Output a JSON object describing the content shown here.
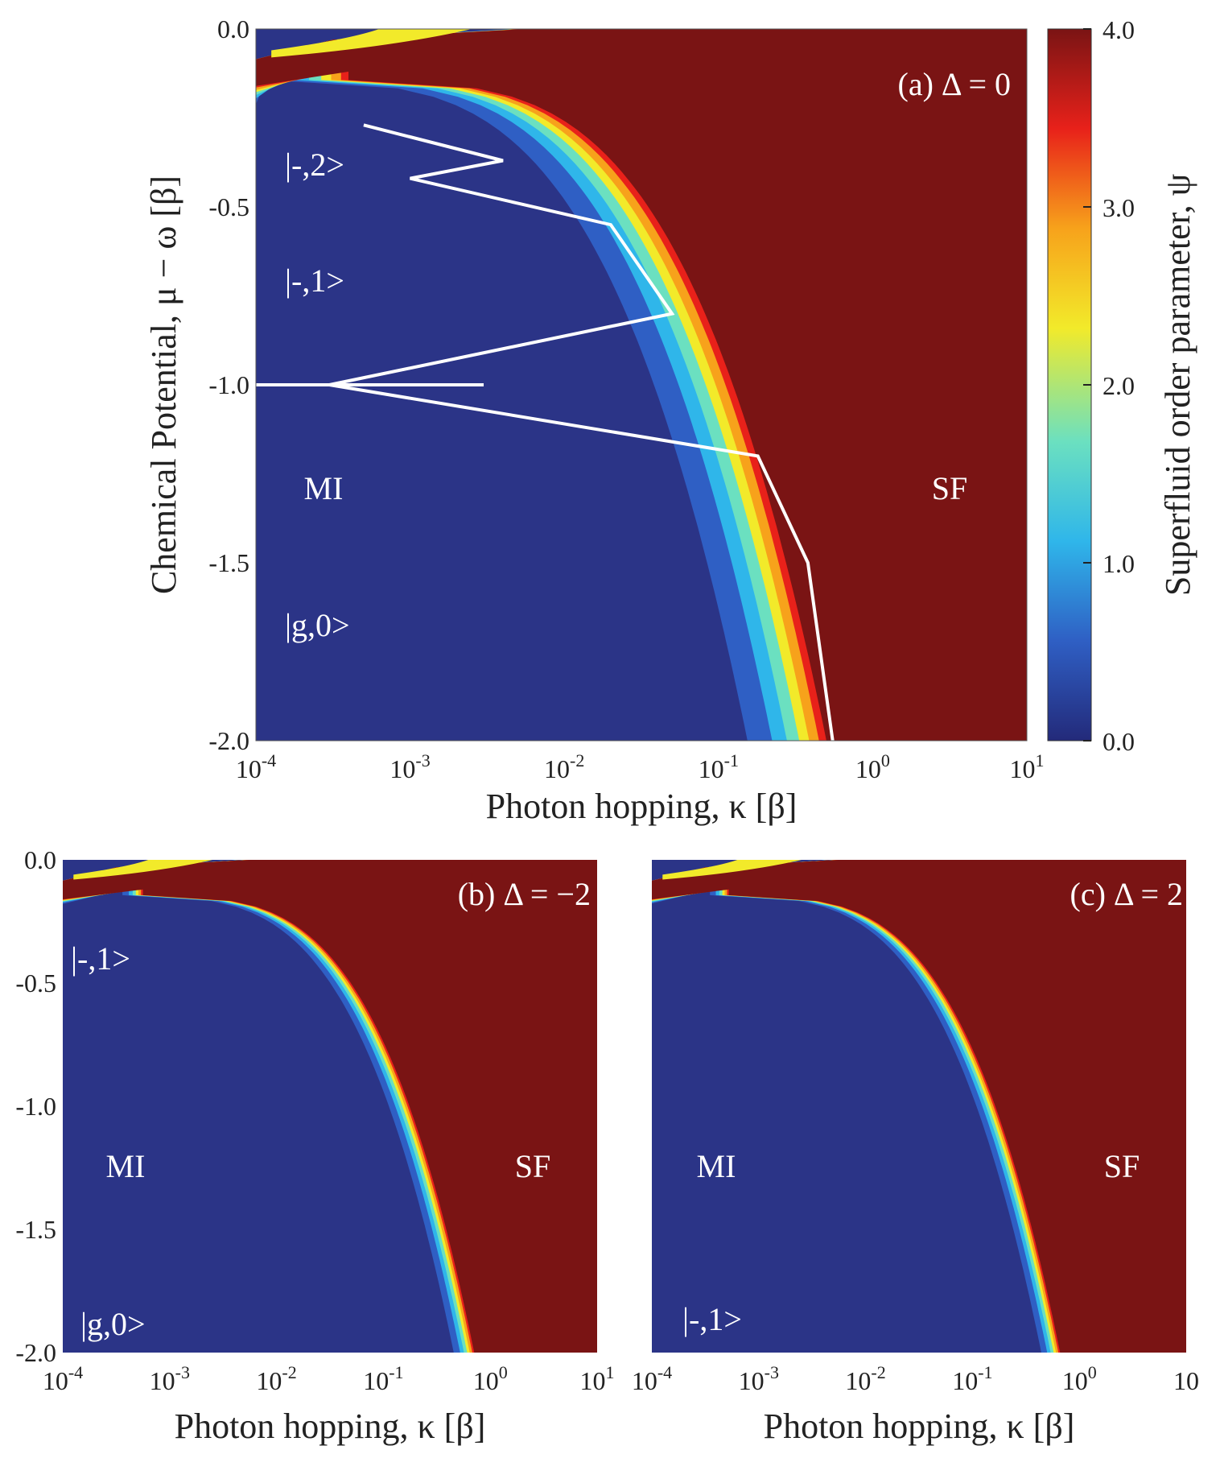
{
  "chart_data": [
    {
      "type": "heatmap",
      "panel": "a",
      "title": "(a) Δ = 0",
      "xlabel": "Photon hopping, κ [β]",
      "ylabel": "Chemical Potential, μ − ω [β]",
      "x_scale": "log",
      "xlim": [
        0.0001,
        10
      ],
      "ylim": [
        -2.0,
        0.0
      ],
      "x_ticks": [
        "10-4",
        "10-3",
        "10-2",
        "10-1",
        "100",
        "101"
      ],
      "y_ticks": [
        "0.0",
        "-0.5",
        "-1.0",
        "-1.5",
        "-2.0"
      ],
      "regions": [
        "MI",
        "SF"
      ],
      "state_labels": [
        "|-,2>",
        "|-,1>",
        "|g,0>"
      ],
      "phase_boundary_white_contour": true,
      "boundary_kappa_at_mu": [
        {
          "mu": -2.0,
          "kappa": 0.55
        },
        {
          "mu": -1.5,
          "kappa": 0.38
        },
        {
          "mu": -1.2,
          "kappa": 0.18
        },
        {
          "mu": -1.0,
          "kappa": 0.0003
        },
        {
          "mu": -0.8,
          "kappa": 0.05
        },
        {
          "mu": -0.55,
          "kappa": 0.02
        },
        {
          "mu": -0.42,
          "kappa": 0.001
        },
        {
          "mu": -0.37,
          "kappa": 0.004
        },
        {
          "mu": -0.27,
          "kappa": 0.0005
        }
      ]
    },
    {
      "type": "heatmap",
      "panel": "b",
      "title": "(b) Δ = −2",
      "xlabel": "Photon hopping, κ [β]",
      "x_scale": "log",
      "xlim": [
        0.0001,
        10
      ],
      "ylim": [
        -2.0,
        0.0
      ],
      "x_ticks": [
        "10-4",
        "10-3",
        "10-2",
        "10-1",
        "100",
        "101"
      ],
      "y_ticks": [
        "0.0",
        "-0.5",
        "-1.0",
        "-1.5",
        "-2.0"
      ],
      "regions": [
        "MI",
        "SF"
      ],
      "state_labels": [
        "|-,1>",
        "|g,0>"
      ]
    },
    {
      "type": "heatmap",
      "panel": "c",
      "title": "(c) Δ = 2",
      "xlabel": "Photon hopping, κ [β]",
      "x_scale": "log",
      "xlim": [
        0.0001,
        10
      ],
      "ylim": [
        -2.0,
        0.0
      ],
      "x_ticks": [
        "10-4",
        "10-3",
        "10-2",
        "10-1",
        "100",
        "10"
      ],
      "regions": [
        "MI",
        "SF"
      ],
      "state_labels": [
        "|-,1>"
      ]
    }
  ],
  "colorbar": {
    "label": "Superfluid order parameter, ψ",
    "ticks": [
      "4.0",
      "3.0",
      "2.0",
      "1.0",
      "0.0"
    ],
    "range": [
      0.0,
      4.0
    ],
    "colormap": [
      "#232a7a",
      "#2f5fc4",
      "#2fb6ea",
      "#6be0c0",
      "#f2ea2a",
      "#f7a21b",
      "#e8211a",
      "#7a1414"
    ]
  },
  "colors": {
    "mi": "#2b3487",
    "sf": "#7c1617",
    "boundary": "#ffffff"
  }
}
